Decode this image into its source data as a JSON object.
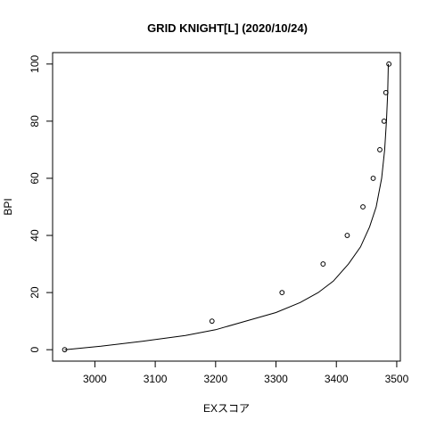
{
  "chart_data": {
    "type": "scatter",
    "title": "GRID KNIGHT[L] (2020/10/24)",
    "xlabel": "EXスコア",
    "ylabel": "BPI",
    "xlim": [
      2930,
      3506
    ],
    "ylim": [
      -4,
      104
    ],
    "xticks": [
      3000,
      3100,
      3200,
      3300,
      3400,
      3500
    ],
    "yticks": [
      0,
      20,
      40,
      60,
      80,
      100
    ],
    "grid": false,
    "points": [
      {
        "x": 2950,
        "y": 0
      },
      {
        "x": 3194,
        "y": 10
      },
      {
        "x": 3310,
        "y": 20
      },
      {
        "x": 3378,
        "y": 30
      },
      {
        "x": 3418,
        "y": 40
      },
      {
        "x": 3444,
        "y": 50
      },
      {
        "x": 3461,
        "y": 60
      },
      {
        "x": 3472,
        "y": 70
      },
      {
        "x": 3479,
        "y": 80
      },
      {
        "x": 3482,
        "y": 90
      },
      {
        "x": 3487,
        "y": 100
      }
    ],
    "curve": [
      {
        "x": 2950,
        "y": 0
      },
      {
        "x": 3010,
        "y": 1.2
      },
      {
        "x": 3080,
        "y": 3
      },
      {
        "x": 3150,
        "y": 5
      },
      {
        "x": 3200,
        "y": 7
      },
      {
        "x": 3250,
        "y": 10
      },
      {
        "x": 3300,
        "y": 13
      },
      {
        "x": 3340,
        "y": 16.5
      },
      {
        "x": 3370,
        "y": 20
      },
      {
        "x": 3395,
        "y": 24
      },
      {
        "x": 3420,
        "y": 30
      },
      {
        "x": 3440,
        "y": 36
      },
      {
        "x": 3455,
        "y": 43
      },
      {
        "x": 3466,
        "y": 50
      },
      {
        "x": 3475,
        "y": 60
      },
      {
        "x": 3480,
        "y": 70
      },
      {
        "x": 3483,
        "y": 80
      },
      {
        "x": 3485,
        "y": 90
      },
      {
        "x": 3486,
        "y": 100
      }
    ]
  }
}
